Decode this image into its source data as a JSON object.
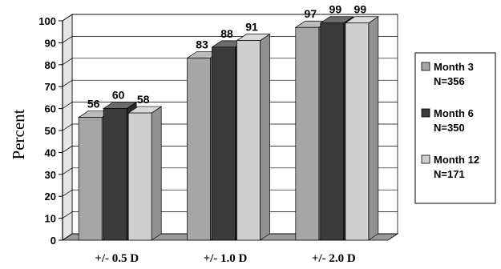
{
  "chart_data": {
    "type": "bar",
    "title": "",
    "xlabel": "",
    "ylabel": "Percent",
    "ylim": [
      0,
      100
    ],
    "yticks": [
      0,
      10,
      20,
      30,
      40,
      50,
      60,
      70,
      80,
      90,
      100
    ],
    "categories": [
      "+/- 0.5 D",
      "+/- 1.0 D",
      "+/- 2.0 D"
    ],
    "series": [
      {
        "name": "Month 3",
        "n_label": "N=356",
        "color": "#a6a6a6",
        "values": [
          56,
          83,
          97
        ]
      },
      {
        "name": "Month 6",
        "n_label": "N=350",
        "color": "#3b3b3b",
        "values": [
          60,
          88,
          99
        ]
      },
      {
        "name": "Month 12",
        "n_label": "N=171",
        "color": "#cfcfcf",
        "values": [
          58,
          91,
          99
        ]
      }
    ],
    "grid": true,
    "legend_position": "right",
    "style": "3d"
  }
}
